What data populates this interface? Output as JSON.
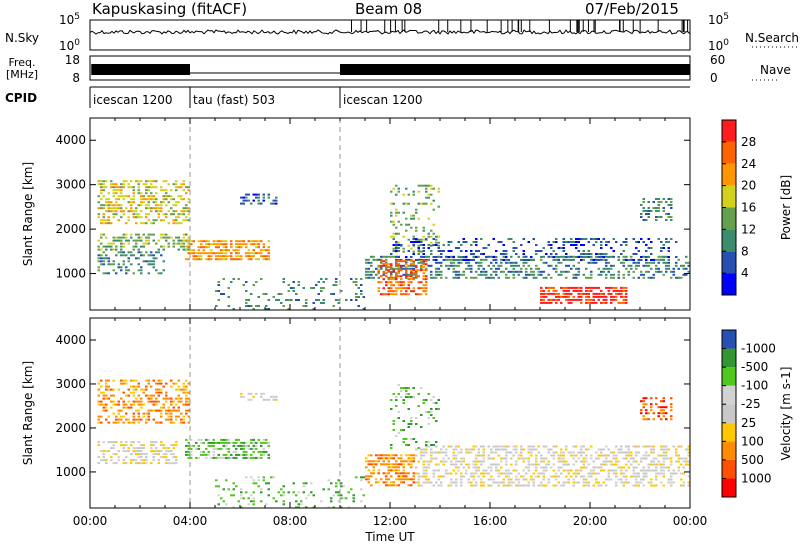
{
  "header": {
    "radar": "Kapuskasing (fitACF)",
    "beam": "Beam 08",
    "date": "07/Feb/2015"
  },
  "chart_data": {
    "type": "heatmap",
    "time_axis": {
      "label": "Time UT",
      "range_hours": [
        0,
        24
      ],
      "tick_labels": [
        "00:00",
        "04:00",
        "08:00",
        "12:00",
        "16:00",
        "20:00",
        "00:00"
      ],
      "tick_values": [
        0,
        4,
        8,
        12,
        16,
        20,
        24
      ]
    },
    "top_strips": {
      "nsky": {
        "label": "N.Sky",
        "tick_labels": [
          "10^5",
          "10^0"
        ],
        "right_label": "N.Search",
        "right_ticks": [
          "10^5",
          "10^0"
        ]
      },
      "freq": {
        "label_top": "Freq.",
        "label_bottom": "[MHz]",
        "ticks": [
          "18",
          "8"
        ],
        "right_label": "Nave",
        "right_ticks": [
          "60",
          "0"
        ]
      },
      "cpid": {
        "label": "CPID",
        "segments": [
          {
            "start": 0,
            "end": 4,
            "name": "icescan 1200"
          },
          {
            "start": 4,
            "end": 10,
            "name": "tau (fast) 503"
          },
          {
            "start": 10,
            "end": 24,
            "name": "icescan 1200"
          }
        ]
      }
    },
    "panels": [
      {
        "parameter": "Power",
        "ylabel": "Slant Range [km]",
        "ylim": [
          180,
          4500
        ],
        "yticks": [
          1000,
          2000,
          3000,
          4000
        ],
        "colorbar": {
          "label": "Power [dB]",
          "tick_labels": [
            "4",
            "8",
            "12",
            "16",
            "20",
            "24",
            "28"
          ],
          "colors": [
            "#0000ff",
            "#2850b4",
            "#3c8c6e",
            "#64a050",
            "#d2d21e",
            "#ff9600",
            "#ff6400",
            "#ff1e1e"
          ]
        },
        "scatter_regions": [
          {
            "t": [
              0.3,
              4.0
            ],
            "r": [
              2100,
              3100
            ],
            "level": 4,
            "density": 0.5
          },
          {
            "t": [
              0.3,
              4.0
            ],
            "r": [
              1500,
              1900
            ],
            "level": 3,
            "density": 0.5
          },
          {
            "t": [
              0.3,
              3.0
            ],
            "r": [
              1000,
              1500
            ],
            "level": 2,
            "density": 0.35
          },
          {
            "t": [
              3.8,
              7.2
            ],
            "r": [
              1300,
              1750
            ],
            "level": 5,
            "density": 0.7
          },
          {
            "t": [
              6.0,
              7.5
            ],
            "r": [
              2550,
              2800
            ],
            "level": 1,
            "density": 0.6
          },
          {
            "t": [
              5.0,
              11.0
            ],
            "r": [
              200,
              900
            ],
            "level": 2,
            "density": 0.18
          },
          {
            "t": [
              12.0,
              14.0
            ],
            "r": [
              1500,
              3000
            ],
            "level": 3,
            "density": 0.25
          },
          {
            "t": [
              11.0,
              24.0
            ],
            "r": [
              900,
              1400
            ],
            "level": 2,
            "density": 0.45
          },
          {
            "t": [
              12.0,
              23.5
            ],
            "r": [
              1300,
              1800
            ],
            "level": 1,
            "density": 0.3
          },
          {
            "t": [
              11.5,
              13.5
            ],
            "r": [
              500,
              1300
            ],
            "level": 6,
            "density": 0.6
          },
          {
            "t": [
              18.0,
              21.5
            ],
            "r": [
              350,
              700
            ],
            "level": 7,
            "density": 0.7
          },
          {
            "t": [
              22.0,
              23.3
            ],
            "r": [
              2200,
              2700
            ],
            "level": 2,
            "density": 0.45
          }
        ]
      },
      {
        "parameter": "Velocity",
        "ylabel": "Slant Range [km]",
        "ylim": [
          180,
          4500
        ],
        "yticks": [
          1000,
          2000,
          3000,
          4000
        ],
        "colorbar": {
          "label": "Velocity [m s-1]",
          "tick_labels": [
            "1000",
            "500",
            "100",
            "25",
            "-25",
            "-100",
            "-500",
            "-1000"
          ],
          "colors": [
            "#ff0000",
            "#ff5000",
            "#ff8c00",
            "#ffc800",
            "#c8c8c8",
            "#d2d2d2",
            "#50c81e",
            "#329632",
            "#2850b4"
          ]
        },
        "scatter_regions": [
          {
            "t": [
              0.3,
              4.0
            ],
            "r": [
              2100,
              3100
            ],
            "level": 2,
            "density": 0.5
          },
          {
            "t": [
              0.3,
              3.5
            ],
            "r": [
              1200,
              1700
            ],
            "level": 4,
            "density": 0.5
          },
          {
            "t": [
              3.8,
              7.2
            ],
            "r": [
              1300,
              1750
            ],
            "level": 6,
            "density": 0.6
          },
          {
            "t": [
              6.0,
              7.5
            ],
            "r": [
              2600,
              2800
            ],
            "level": 4,
            "density": 0.5
          },
          {
            "t": [
              5.0,
              11.0
            ],
            "r": [
              200,
              900
            ],
            "level": 6,
            "density": 0.18
          },
          {
            "t": [
              11.0,
              13.0
            ],
            "r": [
              700,
              1400
            ],
            "level": 2,
            "density": 0.55
          },
          {
            "t": [
              13.0,
              24.0
            ],
            "r": [
              700,
              1600
            ],
            "level": 4,
            "density": 0.5
          },
          {
            "t": [
              12.0,
              14.0
            ],
            "r": [
              1500,
              3000
            ],
            "level": 6,
            "density": 0.2
          },
          {
            "t": [
              22.0,
              23.3
            ],
            "r": [
              2200,
              2700
            ],
            "level": 1,
            "density": 0.45
          }
        ]
      }
    ]
  }
}
